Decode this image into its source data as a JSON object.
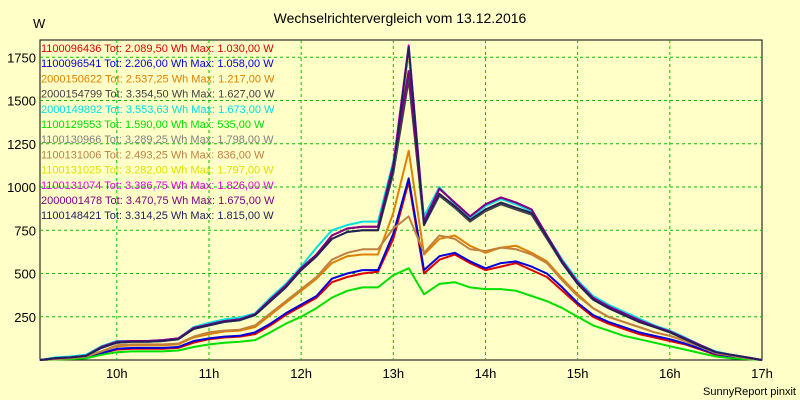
{
  "header": {
    "title": "Wechselrichtervergleich vom 13.12.2016",
    "unit": "W",
    "credit": "SunnyReport pinxit"
  },
  "chart_data": {
    "type": "line",
    "title": "Wechselrichtervergleich vom 13.12.2016",
    "ylabel": "W",
    "xlabel": "",
    "ylim": [
      0,
      1850
    ],
    "xlim": [
      "09:10",
      "17:00"
    ],
    "yticks": [
      250,
      500,
      750,
      1000,
      1250,
      1500,
      1750
    ],
    "xticks": [
      "10h",
      "11h",
      "12h",
      "13h",
      "14h",
      "15h",
      "16h",
      "17h"
    ],
    "grid": true,
    "legend_position": "top-left",
    "x": [
      "09:10",
      "09:20",
      "09:30",
      "09:40",
      "09:50",
      "10:00",
      "10:10",
      "10:20",
      "10:30",
      "10:40",
      "10:50",
      "11:00",
      "11:10",
      "11:20",
      "11:30",
      "11:40",
      "11:50",
      "12:00",
      "12:10",
      "12:20",
      "12:30",
      "12:40",
      "12:50",
      "13:00",
      "13:10",
      "13:20",
      "13:30",
      "13:40",
      "13:50",
      "14:00",
      "14:10",
      "14:20",
      "14:30",
      "14:40",
      "14:50",
      "15:00",
      "15:10",
      "15:20",
      "15:30",
      "15:40",
      "15:50",
      "16:00",
      "16:10",
      "16:20",
      "16:30",
      "16:40",
      "16:50",
      "17:00"
    ],
    "series": [
      {
        "name": "1100096436 Tot: 2.089,50 Wh Max: 1.030,00 W",
        "color": "#dd0000",
        "values": [
          0,
          5,
          10,
          15,
          40,
          60,
          65,
          65,
          65,
          70,
          100,
          120,
          130,
          135,
          150,
          200,
          260,
          310,
          360,
          450,
          480,
          500,
          510,
          700,
          1030,
          500,
          580,
          610,
          560,
          520,
          540,
          560,
          520,
          480,
          400,
          320,
          250,
          210,
          180,
          150,
          130,
          110,
          90,
          60,
          30,
          20,
          10,
          0
        ]
      },
      {
        "name": "1100096541 Tot: 2.206,00 Wh Max: 1.058,00 W",
        "color": "#0000dd",
        "values": [
          0,
          5,
          10,
          15,
          40,
          65,
          70,
          70,
          70,
          75,
          110,
          125,
          135,
          140,
          160,
          210,
          270,
          320,
          370,
          470,
          500,
          520,
          520,
          730,
          1050,
          520,
          600,
          620,
          570,
          530,
          560,
          570,
          540,
          500,
          420,
          330,
          260,
          220,
          190,
          160,
          140,
          120,
          95,
          65,
          35,
          20,
          10,
          0
        ]
      },
      {
        "name": "2000150622 Tot: 2.537,25 Wh Max: 1.217,00 W",
        "color": "#e08000",
        "values": [
          0,
          5,
          10,
          20,
          50,
          80,
          85,
          85,
          85,
          90,
          130,
          150,
          165,
          170,
          190,
          260,
          330,
          400,
          470,
          560,
          600,
          610,
          610,
          850,
          1210,
          610,
          700,
          720,
          660,
          620,
          650,
          660,
          620,
          570,
          470,
          380,
          300,
          250,
          220,
          190,
          160,
          140,
          110,
          75,
          40,
          25,
          10,
          0
        ]
      },
      {
        "name": "2000154799 Tot: 3.354,50 Wh Max: 1.627,00 W",
        "color": "#404040",
        "values": [
          0,
          10,
          15,
          25,
          70,
          100,
          105,
          105,
          110,
          120,
          180,
          200,
          220,
          230,
          260,
          340,
          420,
          520,
          600,
          700,
          740,
          750,
          750,
          1080,
          1620,
          780,
          950,
          880,
          800,
          860,
          900,
          870,
          840,
          700,
          560,
          440,
          350,
          300,
          260,
          220,
          190,
          160,
          120,
          80,
          45,
          30,
          15,
          0
        ]
      },
      {
        "name": "2000149892 Tot: 3.553,63 Wh Max: 1.673,00 W",
        "color": "#00e0e0",
        "values": [
          0,
          15,
          20,
          30,
          80,
          110,
          110,
          110,
          115,
          125,
          190,
          215,
          235,
          245,
          270,
          360,
          440,
          540,
          650,
          750,
          780,
          800,
          800,
          1150,
          1670,
          830,
          1000,
          900,
          820,
          890,
          930,
          900,
          860,
          720,
          580,
          460,
          370,
          320,
          280,
          240,
          200,
          170,
          130,
          85,
          50,
          30,
          15,
          0
        ]
      },
      {
        "name": "1100129553 Tot: 1.590,00 Wh Max: 535,00 W",
        "color": "#00e000",
        "values": [
          0,
          3,
          5,
          10,
          30,
          45,
          50,
          50,
          50,
          55,
          75,
          90,
          100,
          105,
          115,
          160,
          210,
          250,
          300,
          360,
          400,
          420,
          420,
          490,
          530,
          380,
          440,
          450,
          420,
          410,
          410,
          400,
          370,
          340,
          300,
          250,
          200,
          170,
          140,
          120,
          100,
          80,
          60,
          40,
          20,
          10,
          5,
          0
        ]
      },
      {
        "name": "1100130966 Tot: 3.289,25 Wh Max: 1.798,00 W",
        "color": "#808080",
        "values": [
          0,
          10,
          15,
          25,
          70,
          100,
          105,
          105,
          110,
          120,
          180,
          200,
          220,
          230,
          260,
          340,
          420,
          520,
          600,
          700,
          740,
          750,
          750,
          1100,
          1780,
          780,
          960,
          890,
          810,
          870,
          910,
          880,
          850,
          710,
          560,
          440,
          350,
          300,
          260,
          220,
          190,
          160,
          120,
          80,
          45,
          30,
          15,
          0
        ]
      },
      {
        "name": "1100131006 Tot: 2.493,25 Wh Max: 836,00 W",
        "color": "#c08040",
        "values": [
          0,
          5,
          10,
          20,
          50,
          85,
          90,
          90,
          90,
          95,
          135,
          160,
          170,
          175,
          200,
          270,
          340,
          410,
          480,
          580,
          620,
          640,
          640,
          760,
          830,
          620,
          720,
          700,
          640,
          630,
          650,
          640,
          610,
          560,
          460,
          370,
          300,
          250,
          220,
          190,
          160,
          140,
          110,
          75,
          40,
          25,
          10,
          0
        ]
      },
      {
        "name": "1100131025 Tot: 3.282,00 Wh Max: 1.797,00 W",
        "color": "#e0e000",
        "values": [
          0,
          10,
          15,
          25,
          70,
          100,
          105,
          105,
          110,
          120,
          180,
          200,
          220,
          230,
          260,
          340,
          420,
          520,
          600,
          700,
          740,
          750,
          750,
          1100,
          1790,
          780,
          960,
          890,
          810,
          870,
          910,
          880,
          850,
          710,
          560,
          440,
          350,
          300,
          260,
          220,
          190,
          160,
          120,
          80,
          45,
          30,
          15,
          0
        ]
      },
      {
        "name": "1100131074 Tot: 3.386,75 Wh Max: 1.826,00 W",
        "color": "#e000e0",
        "values": [
          0,
          10,
          15,
          25,
          75,
          105,
          110,
          110,
          115,
          125,
          185,
          205,
          225,
          235,
          265,
          350,
          430,
          530,
          610,
          720,
          760,
          770,
          770,
          1130,
          1820,
          800,
          990,
          910,
          830,
          900,
          940,
          910,
          870,
          720,
          570,
          450,
          360,
          310,
          270,
          230,
          195,
          165,
          125,
          85,
          45,
          30,
          15,
          0
        ]
      },
      {
        "name": "2000001478 Tot: 3.470,75 Wh Max: 1.675,00 W",
        "color": "#800080",
        "values": [
          0,
          10,
          15,
          25,
          75,
          105,
          110,
          110,
          115,
          125,
          185,
          205,
          225,
          235,
          265,
          350,
          430,
          530,
          610,
          720,
          760,
          770,
          770,
          1130,
          1670,
          800,
          990,
          910,
          830,
          900,
          940,
          910,
          870,
          720,
          570,
          450,
          360,
          310,
          270,
          230,
          195,
          165,
          125,
          85,
          45,
          30,
          15,
          0
        ]
      },
      {
        "name": "1100148421 Tot: 3.314,25 Wh Max: 1.815,00 W",
        "color": "#202060",
        "values": [
          0,
          10,
          15,
          25,
          70,
          100,
          105,
          105,
          110,
          120,
          180,
          200,
          220,
          230,
          260,
          340,
          420,
          520,
          600,
          700,
          740,
          750,
          750,
          1100,
          1810,
          780,
          960,
          890,
          810,
          870,
          910,
          880,
          850,
          710,
          560,
          440,
          350,
          300,
          260,
          220,
          190,
          160,
          120,
          80,
          45,
          30,
          15,
          0
        ]
      }
    ]
  }
}
